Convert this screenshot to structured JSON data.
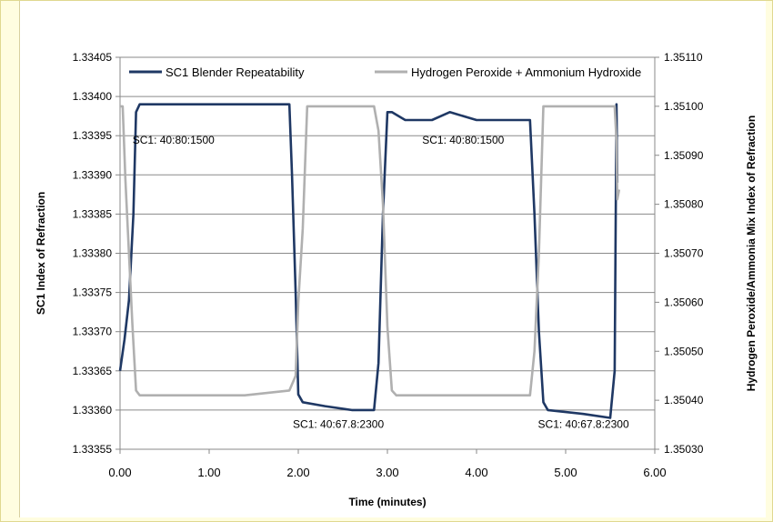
{
  "chart_data": {
    "type": "line",
    "title": "",
    "xlabel": "Time (minutes)",
    "ylabel_left": "SC1 Index of Refraction",
    "ylabel_right": "Hydrogen Peroxide/Ammonia Mix Index of Refraction",
    "xlim": [
      0,
      6
    ],
    "ylim_left": [
      1.33355,
      1.33405
    ],
    "ylim_right": [
      1.3503,
      1.3511
    ],
    "x_ticks": [
      "0.00",
      "1.00",
      "2.00",
      "3.00",
      "4.00",
      "5.00",
      "6.00"
    ],
    "y_ticks_left": [
      "1.33355",
      "1.33360",
      "1.33365",
      "1.33370",
      "1.33375",
      "1.33380",
      "1.33385",
      "1.33390",
      "1.33395",
      "1.33400",
      "1.33405"
    ],
    "y_ticks_right": [
      "1.35030",
      "1.35040",
      "1.35050",
      "1.35060",
      "1.35070",
      "1.35080",
      "1.35090",
      "1.35100",
      "1.35110"
    ],
    "grid": true,
    "legend_placement": "top",
    "series": [
      {
        "name": "SC1 Blender Repeatability",
        "axis": "left",
        "color": "#1f3864",
        "points": [
          [
            0.0,
            1.33365
          ],
          [
            0.05,
            1.33369
          ],
          [
            0.1,
            1.33374
          ],
          [
            0.15,
            1.33385
          ],
          [
            0.18,
            1.33398
          ],
          [
            0.22,
            1.33399
          ],
          [
            0.4,
            1.33399
          ],
          [
            0.8,
            1.33399
          ],
          [
            1.2,
            1.33399
          ],
          [
            1.6,
            1.33399
          ],
          [
            1.9,
            1.33399
          ],
          [
            1.93,
            1.3339
          ],
          [
            1.97,
            1.33375
          ],
          [
            2.0,
            1.33362
          ],
          [
            2.05,
            1.33361
          ],
          [
            2.3,
            1.333605
          ],
          [
            2.6,
            1.3336
          ],
          [
            2.85,
            1.3336
          ],
          [
            2.9,
            1.33366
          ],
          [
            2.95,
            1.33385
          ],
          [
            3.0,
            1.33398
          ],
          [
            3.05,
            1.33398
          ],
          [
            3.2,
            1.33397
          ],
          [
            3.5,
            1.33397
          ],
          [
            3.7,
            1.33398
          ],
          [
            4.0,
            1.33397
          ],
          [
            4.2,
            1.33397
          ],
          [
            4.4,
            1.33397
          ],
          [
            4.6,
            1.33397
          ],
          [
            4.65,
            1.33385
          ],
          [
            4.7,
            1.3337
          ],
          [
            4.75,
            1.33361
          ],
          [
            4.8,
            1.3336
          ],
          [
            5.2,
            1.333595
          ],
          [
            5.5,
            1.33359
          ],
          [
            5.55,
            1.33365
          ],
          [
            5.57,
            1.33399
          ],
          [
            5.58,
            1.33389
          ]
        ]
      },
      {
        "name": "Hydrogen Peroxide + Ammonium Hydroxide",
        "axis": "right",
        "color": "#b0b0b0",
        "points": [
          [
            0.0,
            1.351
          ],
          [
            0.03,
            1.351
          ],
          [
            0.06,
            1.35085
          ],
          [
            0.1,
            1.3507
          ],
          [
            0.14,
            1.35055
          ],
          [
            0.18,
            1.35042
          ],
          [
            0.22,
            1.35041
          ],
          [
            0.6,
            1.35041
          ],
          [
            1.0,
            1.35041
          ],
          [
            1.4,
            1.35041
          ],
          [
            1.9,
            1.35042
          ],
          [
            1.97,
            1.35045
          ],
          [
            2.0,
            1.3506
          ],
          [
            2.05,
            1.35075
          ],
          [
            2.1,
            1.351
          ],
          [
            2.4,
            1.351
          ],
          [
            2.85,
            1.351
          ],
          [
            2.9,
            1.35095
          ],
          [
            2.95,
            1.3508
          ],
          [
            3.0,
            1.35055
          ],
          [
            3.05,
            1.35042
          ],
          [
            3.1,
            1.35041
          ],
          [
            3.5,
            1.35041
          ],
          [
            4.0,
            1.35041
          ],
          [
            4.6,
            1.35041
          ],
          [
            4.65,
            1.3505
          ],
          [
            4.7,
            1.3507
          ],
          [
            4.75,
            1.351
          ],
          [
            5.0,
            1.351
          ],
          [
            5.4,
            1.351
          ],
          [
            5.55,
            1.351
          ],
          [
            5.57,
            1.35093
          ],
          [
            5.58,
            1.35081
          ],
          [
            5.6,
            1.35083
          ]
        ]
      }
    ],
    "annotations": [
      {
        "text": "SC1: 40:80:1500",
        "x": 0.6,
        "y": 1.33394
      },
      {
        "text": "SC1: 40:67.8:2300",
        "x": 2.45,
        "y": 1.333577
      },
      {
        "text": "SC1: 40:80:1500",
        "x": 3.85,
        "y": 1.33394
      },
      {
        "text": "SC1: 40:67.8:2300",
        "x": 5.2,
        "y": 1.333577
      }
    ]
  }
}
